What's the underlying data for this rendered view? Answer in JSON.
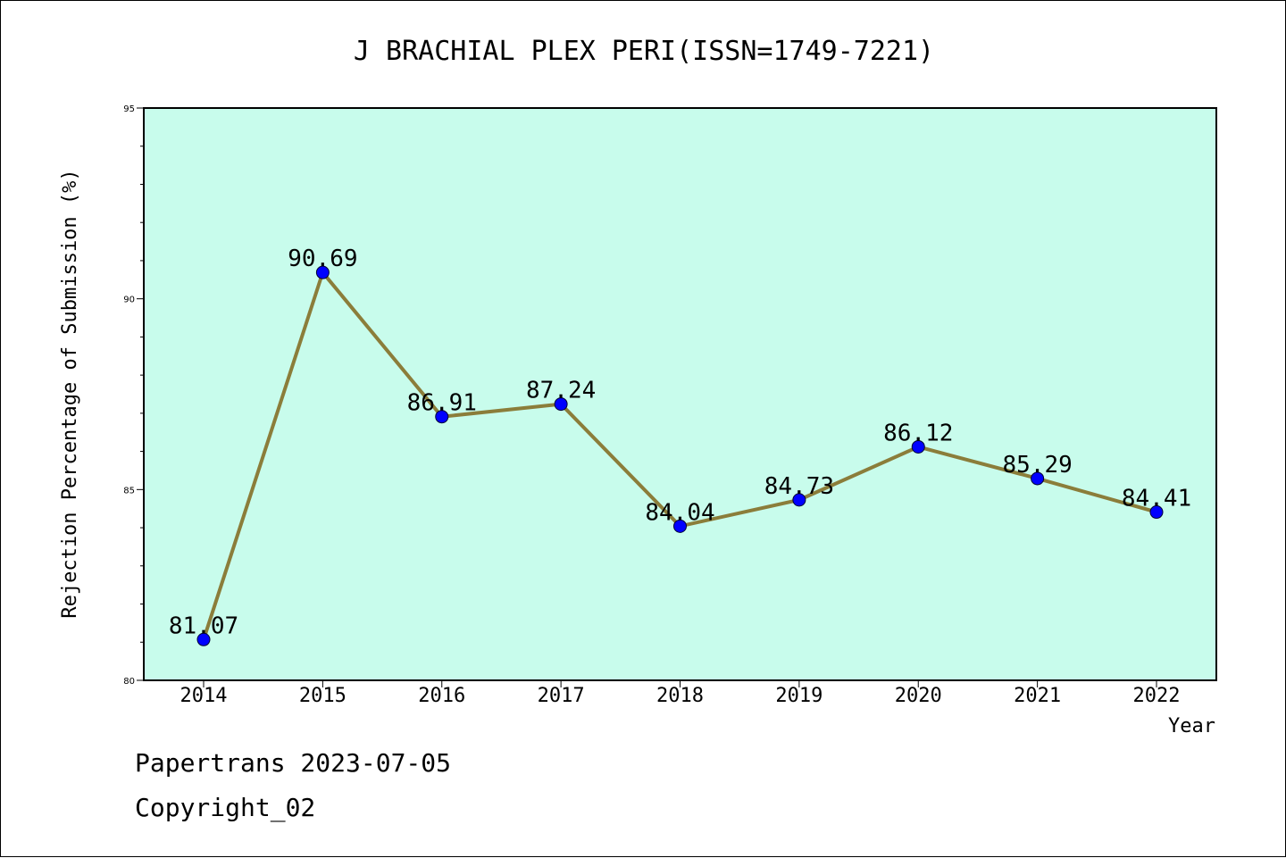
{
  "chart_data": {
    "type": "line",
    "title": "J BRACHIAL PLEX PERI(ISSN=1749-7221)",
    "xlabel": "Year",
    "ylabel": "Rejection Percentage of Submission (%)",
    "categories": [
      "2014",
      "2015",
      "2016",
      "2017",
      "2018",
      "2019",
      "2020",
      "2021",
      "2022"
    ],
    "values": [
      81.07,
      90.69,
      86.91,
      87.24,
      84.04,
      84.73,
      86.12,
      85.29,
      84.41
    ],
    "data_labels": [
      "81.07",
      "90.69",
      "86.91",
      "87.24",
      "84.04",
      "84.73",
      "86.12",
      "85.29",
      "84.41"
    ],
    "ylim": [
      80,
      95
    ],
    "yticks": [
      "80",
      "85",
      "90",
      "95"
    ],
    "grid": false,
    "legend": "none",
    "colors": {
      "plot_background": "#c8fcec",
      "line": "#8b7d3a",
      "marker": "#0000ff"
    }
  },
  "footer": {
    "line1": "Papertrans 2023-07-05",
    "line2": "Copyright_02"
  }
}
